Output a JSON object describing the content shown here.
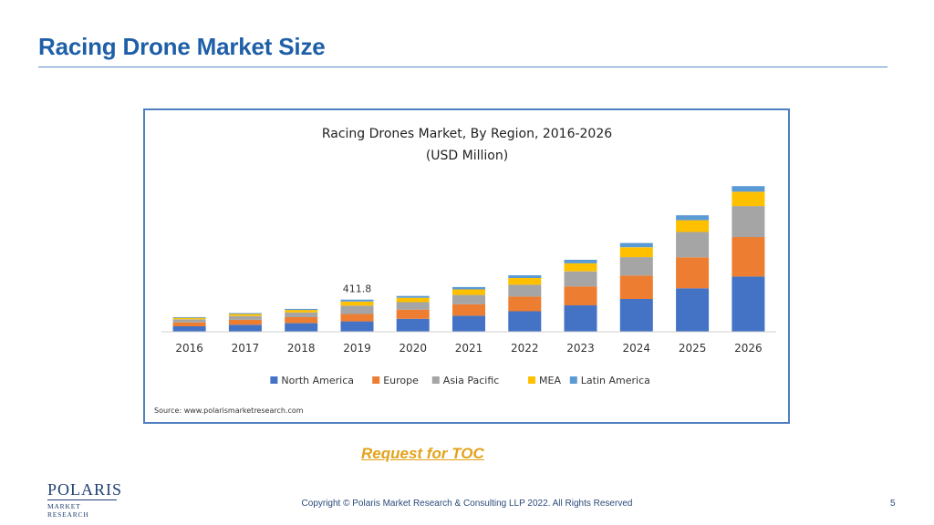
{
  "slide": {
    "title": "Racing Drone Market Size",
    "toc_link": "Request for TOC",
    "copyright": "Copyright © Polaris Market Research & Consulting LLP 2022. All Rights Reserved",
    "page_number": "5",
    "logo": {
      "top": "POLARIS",
      "bottom": "MARKET RESEARCH"
    }
  },
  "colors": {
    "title": "#1f5fa8",
    "rule": "#5b8fc7",
    "frame": "#4f7fc0",
    "link": "#e3a21a"
  },
  "chart_data": {
    "type": "bar",
    "stacked": true,
    "title": "Racing Drones Market,  By Region, 2016-2026",
    "subtitle": "(USD Million)",
    "source": "Source:  www.polarismarketresearch.com",
    "annotation": {
      "category": "2019",
      "text": "411.8"
    },
    "categories": [
      "2016",
      "2017",
      "2018",
      "2019",
      "2020",
      "2021",
      "2022",
      "2023",
      "2024",
      "2025",
      "2026"
    ],
    "series": [
      {
        "name": "North America",
        "color": "#4472c4",
        "values": [
          70,
          90,
          110,
          133,
          165,
          205,
          262,
          338,
          420,
          556,
          706
        ]
      },
      {
        "name": "Europe",
        "color": "#ed7d31",
        "values": [
          50,
          63,
          76,
          94,
          118,
          146,
          188,
          242,
          299,
          396,
          506
        ]
      },
      {
        "name": "Asia Pacific",
        "color": "#a5a5a5",
        "values": [
          39,
          48,
          61,
          108,
          96,
          120,
          152,
          192,
          236,
          325,
          396
        ]
      },
      {
        "name": "MEA",
        "color": "#ffc000",
        "values": [
          20,
          26,
          32,
          51,
          56,
          71,
          86,
          103,
          126,
          150,
          184
        ]
      },
      {
        "name": "Latin America",
        "color": "#5b9bd5",
        "values": [
          9,
          12,
          14,
          25,
          23,
          30,
          35,
          46,
          54,
          63,
          71
        ]
      }
    ],
    "legend_position": "bottom",
    "grid": false,
    "ylim": [
      0,
      1900
    ]
  }
}
